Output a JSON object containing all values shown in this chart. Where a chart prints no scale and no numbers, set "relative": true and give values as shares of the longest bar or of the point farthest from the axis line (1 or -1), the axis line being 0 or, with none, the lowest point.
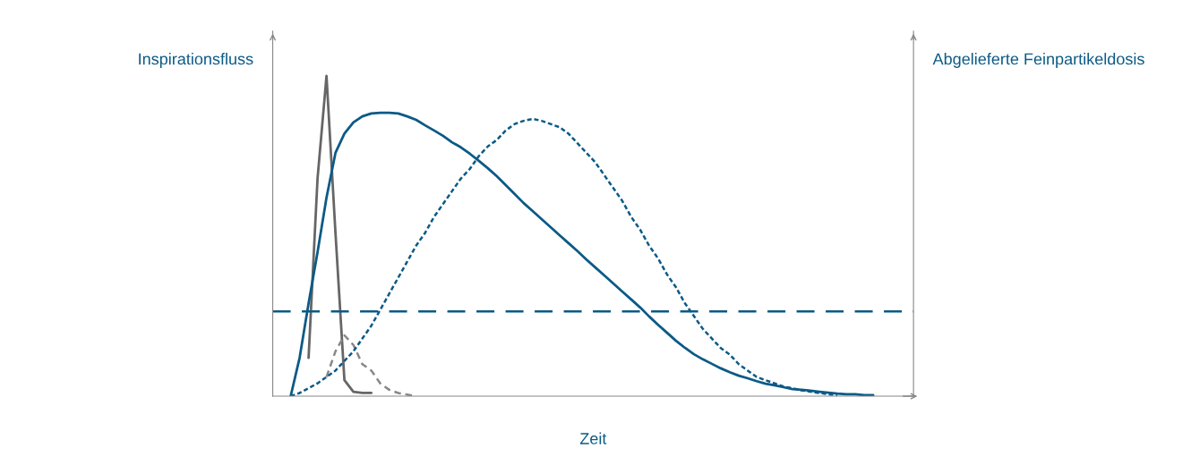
{
  "chart_data": {
    "type": "line",
    "relative": true,
    "ylabel": "Inspirationsfluss",
    "y2label": "Abgelieferte Feinpartikeldosis",
    "xlabel": "Zeit",
    "legend": false,
    "marker": "none",
    "categories": [
      null,
      null,
      null,
      null,
      null,
      null,
      null,
      null,
      null,
      null,
      null,
      null,
      null,
      null,
      null,
      null,
      null,
      null,
      null,
      null,
      null,
      null,
      null,
      null,
      null,
      null,
      null,
      null,
      null,
      null,
      null,
      null,
      null,
      null,
      null,
      null,
      null,
      null,
      null,
      null,
      null,
      null,
      null,
      null,
      null,
      null,
      null,
      null,
      null,
      null,
      null,
      null,
      null,
      null,
      null,
      null,
      null,
      null,
      null,
      null,
      null,
      null,
      null,
      null,
      null,
      null
    ],
    "series": [
      {
        "color": "#666666",
        "line_style": "solid",
        "values": [
          null,
          null,
          0.12,
          0.68,
          1.0,
          0.51,
          0.05,
          0.014,
          0.01,
          0.01,
          null,
          null,
          null,
          null,
          null,
          null,
          null,
          null,
          null,
          null,
          null,
          null,
          null,
          null,
          null,
          null,
          null,
          null,
          null,
          null,
          null,
          null,
          null,
          null,
          null,
          null,
          null,
          null,
          null,
          null,
          null,
          null,
          null,
          null,
          null,
          null,
          null,
          null,
          null,
          null,
          null,
          null,
          null,
          null,
          null,
          null,
          null,
          null,
          null,
          null,
          null,
          null,
          null,
          null,
          null,
          null
        ]
      },
      {
        "color": "#0b5a86",
        "line_style": "solid",
        "values": [
          0,
          0.12,
          0.29,
          0.45,
          0.62,
          0.76,
          0.82,
          0.855,
          0.874,
          0.883,
          0.885,
          0.885,
          0.883,
          0.874,
          0.863,
          0.846,
          0.83,
          0.813,
          0.793,
          0.777,
          0.757,
          0.735,
          0.712,
          0.687,
          0.659,
          0.631,
          0.603,
          0.578,
          0.553,
          0.528,
          0.503,
          0.478,
          0.453,
          0.427,
          0.402,
          0.377,
          0.352,
          0.327,
          0.302,
          0.277,
          0.249,
          0.223,
          0.198,
          0.173,
          0.151,
          0.131,
          0.115,
          0.101,
          0.087,
          0.075,
          0.064,
          0.056,
          0.047,
          0.039,
          0.034,
          0.028,
          0.022,
          0.02,
          0.017,
          0.014,
          0.011,
          0.008,
          0.006,
          0.006,
          0.003,
          0.003
        ]
      },
      {
        "color": "#888888",
        "line_style": "dashed",
        "values": [
          null,
          null,
          null,
          null,
          0.06,
          0.14,
          0.19,
          0.16,
          0.1,
          0.08,
          0.04,
          0.02,
          0.01,
          0.005,
          0,
          null,
          null,
          null,
          null,
          null,
          null,
          null,
          null,
          null,
          null,
          null,
          null,
          null,
          null,
          null,
          null,
          null,
          null,
          null,
          null,
          null,
          null,
          null,
          null,
          null,
          null,
          null,
          null,
          null,
          null,
          null,
          null,
          null,
          null,
          null,
          null,
          null,
          null,
          null,
          null,
          null,
          null,
          null,
          null,
          null,
          null,
          null,
          null,
          null,
          null,
          null
        ]
      },
      {
        "color": "#0b5a86",
        "line_style": "dotted",
        "values": [
          0,
          0.01,
          0.025,
          0.04,
          0.06,
          0.08,
          0.11,
          0.14,
          0.18,
          0.22,
          0.27,
          0.32,
          0.37,
          0.42,
          0.47,
          0.51,
          0.56,
          0.6,
          0.64,
          0.68,
          0.71,
          0.75,
          0.78,
          0.8,
          0.83,
          0.85,
          0.86,
          0.866,
          0.86,
          0.85,
          0.84,
          0.82,
          0.79,
          0.76,
          0.73,
          0.69,
          0.65,
          0.61,
          0.56,
          0.52,
          0.47,
          0.43,
          0.38,
          0.34,
          0.29,
          0.25,
          0.21,
          0.18,
          0.15,
          0.13,
          0.1,
          0.08,
          0.06,
          0.05,
          0.04,
          0.03,
          0.025,
          0.018,
          0.014,
          0.01,
          0.006,
          0.003,
          null,
          null,
          null,
          null
        ]
      }
    ],
    "ref_lines": [
      {
        "axis": "y",
        "value": 0.265,
        "color": "#0b5a86",
        "line_style": "longdash"
      }
    ]
  }
}
